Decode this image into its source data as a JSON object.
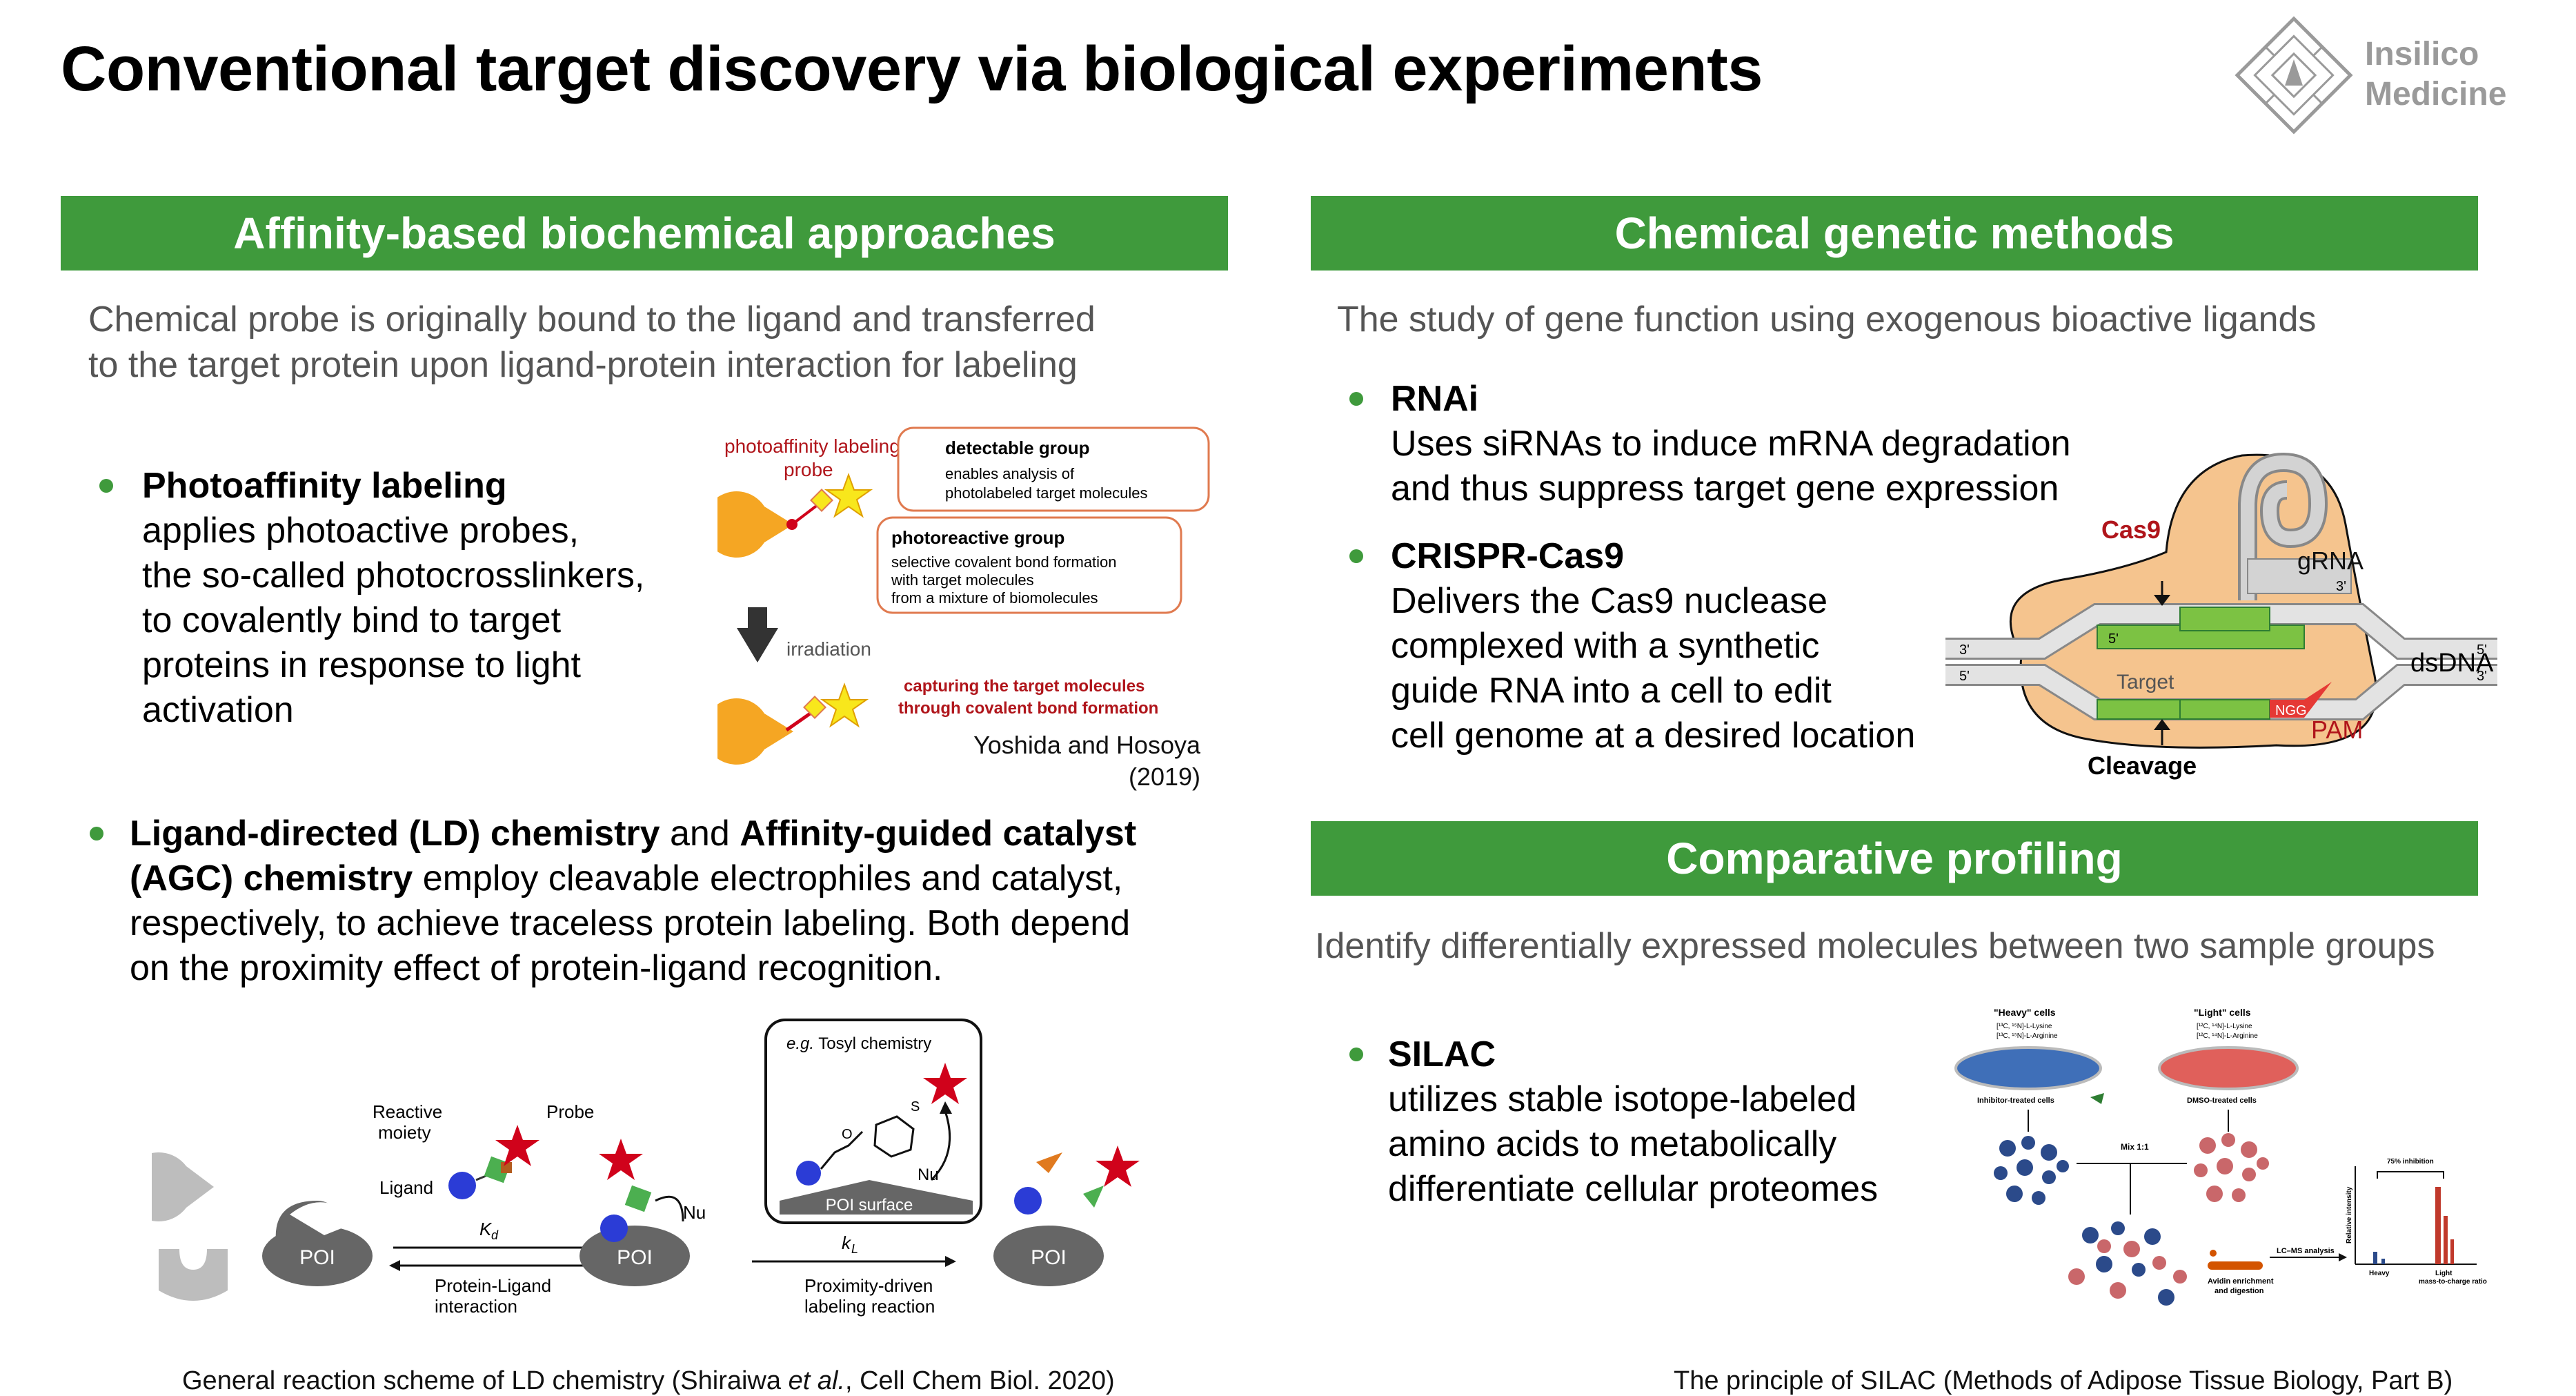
{
  "title": "Conventional target discovery via biological experiments",
  "logo": {
    "line1": "Insilico",
    "line2": "Medicine"
  },
  "left": {
    "header": "Affinity-based biochemical approaches",
    "intro_line1": "Chemical probe is originally bound to the ligand and transferred",
    "intro_line2": "to the target protein upon ligand-protein interaction for labeling",
    "photo": {
      "title": "Photoaffinity labeling",
      "lines": [
        "applies photoactive probes,",
        "the so-called photocrosslinkers,",
        "to covalently bind to target",
        "proteins in response to light",
        "activation"
      ],
      "fig": {
        "probe_label1": "photoaffinity labeling",
        "probe_label2": "probe",
        "detect_title": "detectable group",
        "detect_l1": "enables analysis of",
        "detect_l2": "photolabeled target molecules",
        "photo_title": "photoreactive group",
        "photo_l1": "selective covalent bond formation",
        "photo_l2": "with target molecules",
        "photo_l3": "from a mixture of biomolecules",
        "irradiation": "irradiation",
        "capture1": "capturing the target molecules",
        "capture2": "through covalent bond formation",
        "citation1": "Yoshida and Hosoya",
        "citation2": "(2019)"
      }
    },
    "ld": {
      "b1": "Ligand-directed (LD) chemistry",
      "t1": " and ",
      "b2": "Affinity-guided catalyst",
      "b3": "(AGC) chemistry",
      "t2": " employ cleavable electrophiles and catalyst,",
      "l3": "respectively, to achieve traceless protein labeling. Both depend",
      "l4": "on the proximity effect of protein-ligand recognition."
    },
    "scheme": {
      "reactive1": "Reactive",
      "reactive2": "moiety",
      "probe": "Probe",
      "ligand": "Ligand",
      "poi": "POI",
      "kd": "K",
      "kd_sub": "d",
      "pl1": "Protein-Ligand",
      "pl2": "interaction",
      "nu": "Nu",
      "tosyl_eg": "e.g.",
      "tosyl": " Tosyl chemistry",
      "poi_surface": "POI surface",
      "kl": "k",
      "kl_sub": "L",
      "pd1": "Proximity-driven",
      "pd2": "labeling reaction",
      "o": "O",
      "s": "S"
    },
    "caption_pre": "General reaction scheme of LD chemistry (Shiraiwa ",
    "caption_em": "et al.",
    "caption_post": ", Cell Chem Biol. 2020)"
  },
  "right": {
    "header1": "Chemical genetic methods",
    "intro1": "The study of gene function using exogenous bioactive ligands",
    "rnai": {
      "title": "RNAi",
      "lines": [
        "Uses siRNAs to induce mRNA degradation",
        "and thus suppress target gene expression"
      ]
    },
    "crispr": {
      "title": "CRISPR-Cas9",
      "lines": [
        "Delivers the Cas9 nuclease",
        "complexed with a synthetic",
        "guide RNA into a cell to edit",
        "cell genome at a desired location"
      ]
    },
    "cas9fig": {
      "cas9": "Cas9",
      "grna": "gRNA",
      "dsdna": "dsDNA",
      "target": "Target",
      "pam": "PAM",
      "ngg": "NGG",
      "cleavage": "Cleavage",
      "p3": "3'",
      "p5": "5'"
    },
    "header2": "Comparative profiling",
    "intro2": "Identify differentially expressed molecules between two sample groups",
    "silac": {
      "title": "SILAC",
      "lines": [
        "utilizes stable isotope-labeled",
        "amino acids to metabolically",
        "differentiate cellular proteomes"
      ]
    },
    "silacfig": {
      "heavy": "\"Heavy\" cells",
      "light": "\"Light\" cells",
      "heavy_l1": "[¹³C, ¹⁵N]-L-Lysine",
      "heavy_l2": "[¹³C, ¹⁵N]-L-Arginine",
      "light_l1": "[¹²C, ¹⁴N]-L-Lysine",
      "light_l2": "[¹²C, ¹⁴N]-L-Arginine",
      "inhib": "Inhibitor-treated cells",
      "dmso": "DMSO-treated cells",
      "mix": "Mix 1:1",
      "lcms": "LC–MS analysis",
      "avidin1": "Avidin enrichment",
      "avidin2": "and digestion",
      "inhibition": "75% inhibition",
      "rel": "Relative intensity",
      "heavy_ax": "Heavy",
      "light_ax": "Light",
      "mz": "mass-to-charge ratio"
    },
    "caption": "The principle of SILAC (Methods of Adipose Tissue Biology, Part B)"
  },
  "colors": {
    "banner": "#3f9a3c",
    "accent_red": "#b0151b",
    "cas9": "#f5c48e",
    "dna_green": "#7cc243"
  }
}
